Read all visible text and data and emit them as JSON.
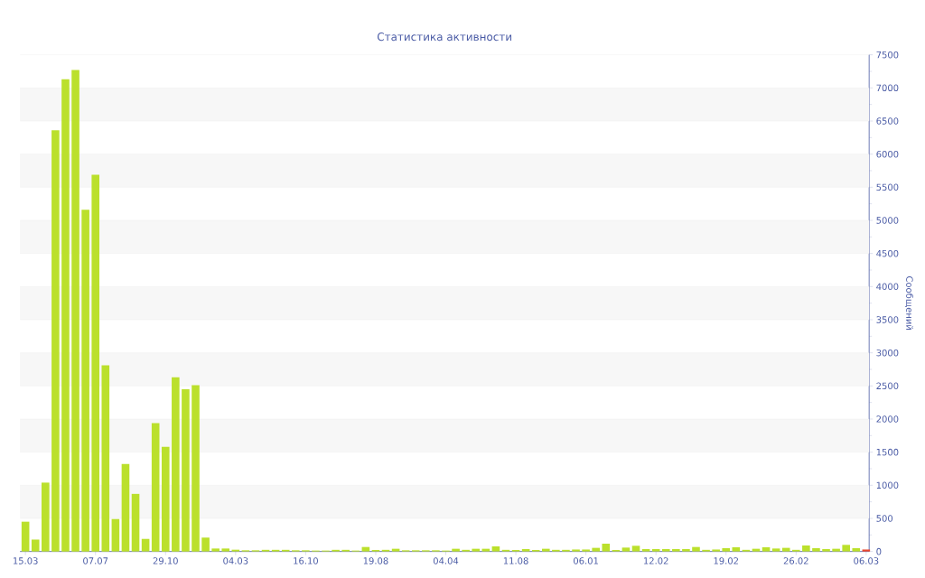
{
  "chart_data": {
    "type": "bar",
    "title": "Статистика активности",
    "ylabel": "Сообщений",
    "categories": [
      "15.03",
      null,
      null,
      null,
      null,
      null,
      null,
      "07.07",
      null,
      null,
      null,
      null,
      null,
      null,
      "29.10",
      null,
      null,
      null,
      null,
      null,
      null,
      "04.03",
      null,
      null,
      null,
      null,
      null,
      null,
      "16.10",
      null,
      null,
      null,
      null,
      null,
      null,
      "19.08",
      null,
      null,
      null,
      null,
      null,
      null,
      "04.04",
      null,
      null,
      null,
      null,
      null,
      null,
      "11.08",
      null,
      null,
      null,
      null,
      null,
      null,
      "06.01",
      null,
      null,
      null,
      null,
      null,
      null,
      "12.02",
      null,
      null,
      null,
      null,
      null,
      null,
      "19.02",
      null,
      null,
      null,
      null,
      null,
      null,
      "26.02",
      null,
      null,
      null,
      null,
      null,
      null,
      "06.03"
    ],
    "values": [
      450,
      180,
      1040,
      6360,
      7130,
      7270,
      5160,
      5690,
      2810,
      490,
      1320,
      870,
      190,
      1940,
      1580,
      2630,
      2450,
      2510,
      210,
      45,
      45,
      27,
      18,
      18,
      25,
      25,
      25,
      18,
      18,
      14,
      14,
      25,
      25,
      14,
      68,
      23,
      25,
      41,
      18,
      18,
      18,
      18,
      14,
      41,
      25,
      41,
      41,
      77,
      25,
      23,
      36,
      23,
      41,
      25,
      25,
      30,
      30,
      55,
      118,
      23,
      59,
      86,
      36,
      36,
      36,
      36,
      36,
      68,
      25,
      30,
      50,
      64,
      25,
      41,
      64,
      45,
      55,
      25,
      91,
      50,
      36,
      41,
      100,
      50,
      30
    ],
    "colors": [
      "#bbe02c",
      "#bbe02c",
      "#bbe02c",
      "#bbe02c",
      "#bbe02c",
      "#bbe02c",
      "#bbe02c",
      "#bbe02c",
      "#bbe02c",
      "#bbe02c",
      "#bbe02c",
      "#bbe02c",
      "#bbe02c",
      "#bbe02c",
      "#bbe02c",
      "#bbe02c",
      "#bbe02c",
      "#bbe02c",
      "#bbe02c",
      "#bbe02c",
      "#bbe02c",
      "#bbe02c",
      "#bbe02c",
      "#bbe02c",
      "#bbe02c",
      "#bbe02c",
      "#bbe02c",
      "#bbe02c",
      "#bbe02c",
      "#bbe02c",
      "#bbe02c",
      "#bbe02c",
      "#bbe02c",
      "#bbe02c",
      "#bbe02c",
      "#bbe02c",
      "#bbe02c",
      "#bbe02c",
      "#bbe02c",
      "#bbe02c",
      "#bbe02c",
      "#bbe02c",
      "#bbe02c",
      "#bbe02c",
      "#bbe02c",
      "#bbe02c",
      "#bbe02c",
      "#bbe02c",
      "#bbe02c",
      "#bbe02c",
      "#bbe02c",
      "#bbe02c",
      "#bbe02c",
      "#bbe02c",
      "#bbe02c",
      "#bbe02c",
      "#bbe02c",
      "#bbe02c",
      "#bbe02c",
      "#bbe02c",
      "#bbe02c",
      "#bbe02c",
      "#bbe02c",
      "#bbe02c",
      "#bbe02c",
      "#bbe02c",
      "#bbe02c",
      "#bbe02c",
      "#bbe02c",
      "#bbe02c",
      "#bbe02c",
      "#bbe02c",
      "#bbe02c",
      "#bbe02c",
      "#bbe02c",
      "#bbe02c",
      "#bbe02c",
      "#bbe02c",
      "#bbe02c",
      "#bbe02c",
      "#bbe02c",
      "#bbe02c",
      "#bbe02c",
      "#bbe02c",
      "#e8452c"
    ],
    "ylim": [
      0,
      7500
    ],
    "yticks": [
      0,
      500,
      1000,
      1500,
      2000,
      2500,
      3000,
      3500,
      4000,
      4500,
      5000,
      5500,
      6000,
      6500,
      7000,
      7500
    ],
    "grid": "y"
  }
}
